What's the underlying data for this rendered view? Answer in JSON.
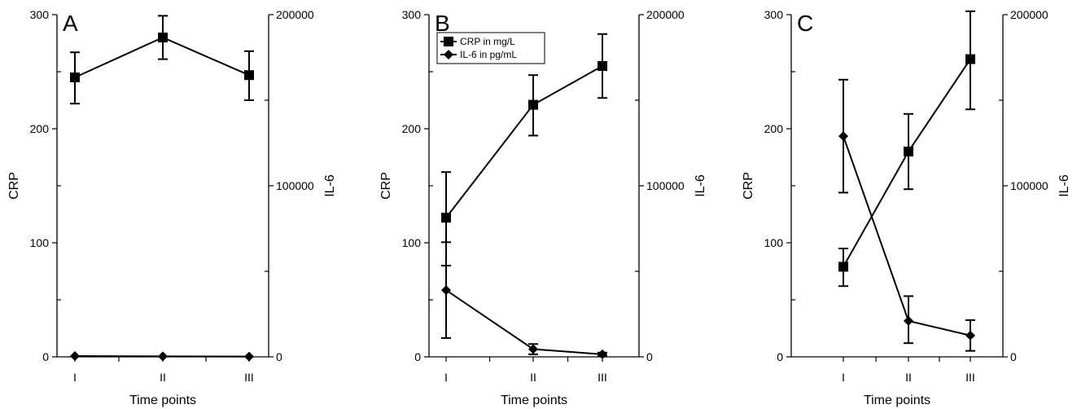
{
  "colors": {
    "ink": "#000000",
    "background": "#ffffff"
  },
  "legend": {
    "panel": "B",
    "entries": [
      {
        "marker": "square",
        "label": "CRP in mg/L"
      },
      {
        "marker": "diamond",
        "label": "IL-6 in pg/mL"
      }
    ]
  },
  "chart_data": [
    {
      "type": "line",
      "panel_label": "A",
      "categories": [
        "I",
        "II",
        "III"
      ],
      "xlabel": "Time points",
      "ylabel_left": "CRP",
      "ylabel_right": "IL-6",
      "ylim_left": [
        0,
        300
      ],
      "ylim_right": [
        0,
        200000
      ],
      "yticks_left": [
        "0",
        "100",
        "200",
        "300"
      ],
      "yticks_right": [
        "0",
        "100000",
        "200000"
      ],
      "grid": false,
      "series": [
        {
          "marker": "square",
          "axis": "left",
          "values": [
            245,
            280,
            247
          ],
          "err_low": [
            222,
            261,
            225
          ],
          "err_high": [
            267,
            299,
            268
          ]
        },
        {
          "marker": "diamond",
          "axis": "right",
          "values": [
            500,
            300,
            200
          ],
          "err_low": [
            500,
            300,
            200
          ],
          "err_high": [
            500,
            300,
            200
          ]
        }
      ]
    },
    {
      "type": "line",
      "panel_label": "B",
      "categories": [
        "I",
        "II",
        "III"
      ],
      "xlabel": "Time points",
      "ylabel_left": "CRP",
      "ylabel_right": "IL-6",
      "ylim_left": [
        0,
        300
      ],
      "ylim_right": [
        0,
        200000
      ],
      "yticks_left": [
        "0",
        "100",
        "200",
        "300"
      ],
      "yticks_right": [
        "0",
        "100000",
        "200000"
      ],
      "grid": false,
      "legend_position": "top-left",
      "series": [
        {
          "name": "CRP in mg/L",
          "marker": "square",
          "axis": "left",
          "values": [
            122,
            221,
            255
          ],
          "err_low": [
            80,
            194,
            227
          ],
          "err_high": [
            162,
            247,
            283
          ]
        },
        {
          "name": "IL-6 in pg/mL",
          "marker": "diamond",
          "axis": "right",
          "values": [
            39000,
            4500,
            1500
          ],
          "err_low": [
            11000,
            1500,
            500
          ],
          "err_high": [
            67000,
            7500,
            2500
          ]
        }
      ]
    },
    {
      "type": "line",
      "panel_label": "C",
      "categories": [
        "I",
        "II",
        "III"
      ],
      "xlabel": "Time points",
      "ylabel_left": "CRP",
      "ylabel_right": "IL-6",
      "ylim_left": [
        0,
        300
      ],
      "ylim_right": [
        0,
        200000
      ],
      "yticks_left": [
        "0",
        "100",
        "200",
        "300"
      ],
      "yticks_right": [
        "0",
        "100000",
        "200000"
      ],
      "grid": false,
      "series": [
        {
          "marker": "square",
          "axis": "left",
          "values": [
            79,
            180,
            261
          ],
          "err_low": [
            62,
            147,
            217
          ],
          "err_high": [
            95,
            213,
            303
          ]
        },
        {
          "marker": "diamond",
          "axis": "right",
          "values": [
            129000,
            21000,
            12500
          ],
          "err_low": [
            96000,
            8000,
            3500
          ],
          "err_high": [
            162000,
            35500,
            21500
          ]
        }
      ]
    }
  ]
}
